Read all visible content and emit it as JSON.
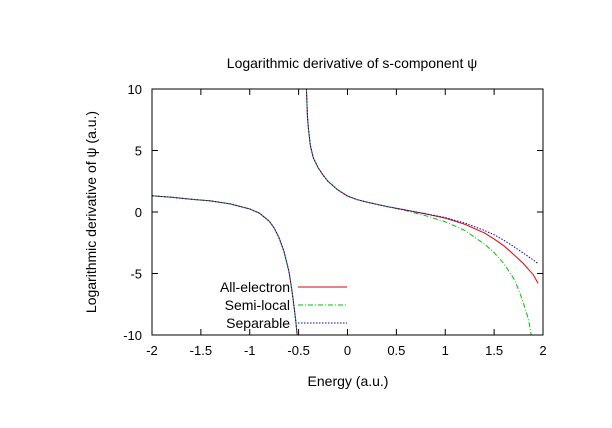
{
  "chart_data": {
    "type": "line",
    "title": "Logarithmic derivative of s-component ψ",
    "xlabel": "Energy (a.u.)",
    "ylabel": "Logarithmic derivative of ψ (a.u.)",
    "xlim": [
      -2,
      2
    ],
    "ylim": [
      -10,
      10
    ],
    "xticks": [
      -2,
      -1.5,
      -1,
      -0.5,
      0,
      0.5,
      1,
      1.5,
      2
    ],
    "xtick_labels": [
      "-2",
      "-1.5",
      "-1",
      "-0.5",
      "0",
      "0.5",
      "1",
      "1.5",
      "2"
    ],
    "yticks": [
      -10,
      -5,
      0,
      5,
      10
    ],
    "ytick_labels": [
      "-10",
      "-5",
      "0",
      "5",
      "10"
    ],
    "grid": false,
    "legend_position": "bottom-left",
    "series": [
      {
        "name": "All-electron",
        "color": "#e00000",
        "dash": "solid",
        "segments": [
          [
            [
              -2.0,
              1.32
            ],
            [
              -1.8,
              1.2
            ],
            [
              -1.6,
              1.04
            ],
            [
              -1.4,
              0.9
            ],
            [
              -1.2,
              0.66
            ],
            [
              -1.0,
              0.25
            ],
            [
              -0.9,
              -0.1
            ],
            [
              -0.8,
              -0.75
            ],
            [
              -0.75,
              -1.3
            ],
            [
              -0.7,
              -2.1
            ],
            [
              -0.65,
              -3.2
            ],
            [
              -0.6,
              -4.8
            ],
            [
              -0.57,
              -6.3
            ],
            [
              -0.55,
              -7.5
            ],
            [
              -0.53,
              -8.8
            ],
            [
              -0.52,
              -9.6
            ],
            [
              -0.515,
              -10.0
            ]
          ],
          [
            [
              -0.42,
              10.0
            ],
            [
              -0.41,
              7.8
            ],
            [
              -0.4,
              6.8
            ],
            [
              -0.38,
              5.4
            ],
            [
              -0.35,
              4.4
            ],
            [
              -0.3,
              3.6
            ],
            [
              -0.25,
              3.0
            ],
            [
              -0.2,
              2.5
            ],
            [
              -0.1,
              1.8
            ],
            [
              0.0,
              1.3
            ],
            [
              0.1,
              1.0
            ],
            [
              0.2,
              0.8
            ],
            [
              0.4,
              0.45
            ],
            [
              0.6,
              0.15
            ],
            [
              0.8,
              -0.15
            ],
            [
              1.0,
              -0.5
            ],
            [
              1.2,
              -1.0
            ],
            [
              1.4,
              -1.7
            ],
            [
              1.5,
              -2.2
            ],
            [
              1.6,
              -2.75
            ],
            [
              1.7,
              -3.45
            ],
            [
              1.8,
              -4.2
            ],
            [
              1.9,
              -5.1
            ],
            [
              1.95,
              -5.8
            ]
          ]
        ]
      },
      {
        "name": "Semi-local",
        "color": "#00c000",
        "dash": "dashdot",
        "segments": [
          [
            [
              -2.0,
              1.32
            ],
            [
              -1.8,
              1.2
            ],
            [
              -1.6,
              1.04
            ],
            [
              -1.4,
              0.9
            ],
            [
              -1.2,
              0.66
            ],
            [
              -1.0,
              0.25
            ],
            [
              -0.9,
              -0.1
            ],
            [
              -0.8,
              -0.75
            ],
            [
              -0.75,
              -1.3
            ],
            [
              -0.7,
              -2.1
            ],
            [
              -0.65,
              -3.2
            ],
            [
              -0.6,
              -4.8
            ],
            [
              -0.57,
              -6.3
            ],
            [
              -0.55,
              -7.5
            ],
            [
              -0.53,
              -8.8
            ],
            [
              -0.52,
              -9.6
            ],
            [
              -0.515,
              -10.0
            ]
          ],
          [
            [
              -0.42,
              10.0
            ],
            [
              -0.41,
              7.8
            ],
            [
              -0.4,
              6.8
            ],
            [
              -0.38,
              5.4
            ],
            [
              -0.35,
              4.4
            ],
            [
              -0.3,
              3.6
            ],
            [
              -0.25,
              3.0
            ],
            [
              -0.2,
              2.5
            ],
            [
              -0.1,
              1.8
            ],
            [
              0.0,
              1.3
            ],
            [
              0.1,
              1.0
            ],
            [
              0.2,
              0.8
            ],
            [
              0.4,
              0.45
            ],
            [
              0.6,
              0.1
            ],
            [
              0.8,
              -0.3
            ],
            [
              1.0,
              -0.8
            ],
            [
              1.2,
              -1.5
            ],
            [
              1.4,
              -2.6
            ],
            [
              1.5,
              -3.3
            ],
            [
              1.6,
              -4.2
            ],
            [
              1.7,
              -5.4
            ],
            [
              1.75,
              -6.3
            ],
            [
              1.8,
              -7.4
            ],
            [
              1.85,
              -8.7
            ],
            [
              1.88,
              -10.0
            ]
          ]
        ]
      },
      {
        "name": "Separable",
        "color": "#0000e0",
        "dash": "dotted",
        "segments": [
          [
            [
              -2.0,
              1.32
            ],
            [
              -1.8,
              1.2
            ],
            [
              -1.6,
              1.04
            ],
            [
              -1.4,
              0.9
            ],
            [
              -1.2,
              0.66
            ],
            [
              -1.0,
              0.25
            ],
            [
              -0.9,
              -0.1
            ],
            [
              -0.8,
              -0.75
            ],
            [
              -0.75,
              -1.3
            ],
            [
              -0.7,
              -2.1
            ],
            [
              -0.65,
              -3.2
            ],
            [
              -0.6,
              -4.8
            ],
            [
              -0.57,
              -6.3
            ],
            [
              -0.55,
              -7.5
            ],
            [
              -0.53,
              -8.8
            ],
            [
              -0.52,
              -9.6
            ],
            [
              -0.515,
              -10.0
            ]
          ],
          [
            [
              -0.42,
              10.0
            ],
            [
              -0.41,
              7.8
            ],
            [
              -0.4,
              6.8
            ],
            [
              -0.38,
              5.4
            ],
            [
              -0.35,
              4.4
            ],
            [
              -0.3,
              3.6
            ],
            [
              -0.25,
              3.0
            ],
            [
              -0.2,
              2.5
            ],
            [
              -0.1,
              1.8
            ],
            [
              0.0,
              1.3
            ],
            [
              0.1,
              1.0
            ],
            [
              0.2,
              0.8
            ],
            [
              0.4,
              0.45
            ],
            [
              0.6,
              0.15
            ],
            [
              0.8,
              -0.15
            ],
            [
              1.0,
              -0.45
            ],
            [
              1.2,
              -0.9
            ],
            [
              1.4,
              -1.5
            ],
            [
              1.5,
              -1.85
            ],
            [
              1.6,
              -2.3
            ],
            [
              1.7,
              -2.8
            ],
            [
              1.8,
              -3.35
            ],
            [
              1.9,
              -3.9
            ],
            [
              1.95,
              -4.2
            ]
          ]
        ]
      }
    ]
  }
}
